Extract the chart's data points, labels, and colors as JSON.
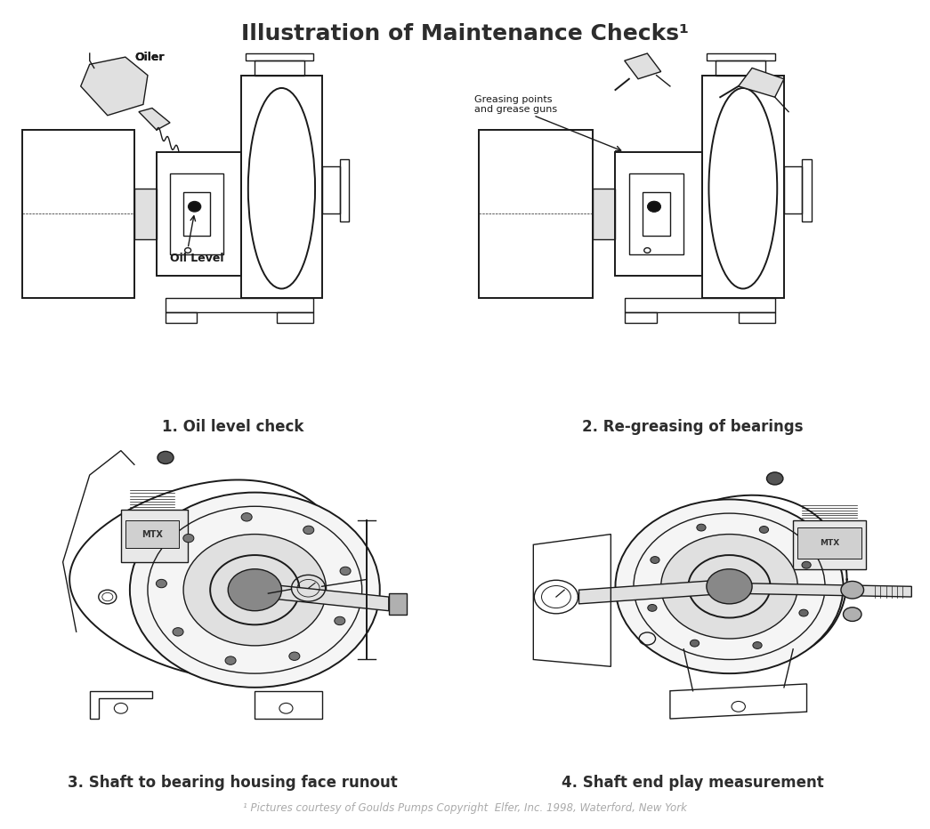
{
  "title": "Illustration of Maintenance Checks¹",
  "title_fontsize": 18,
  "title_fontweight": "bold",
  "title_color": "#2d2d2d",
  "background_color": "#ffffff",
  "footnote": "¹ Pictures courtesy of Goulds Pumps Copyright  Elfer, Inc. 1998, Waterford, New York",
  "footnote_fontsize": 8.5,
  "footnote_color": "#aaaaaa",
  "captions": [
    "1. Oil level check",
    "2. Re-greasing of bearings",
    "3. Shaft to bearing housing face runout",
    "4. Shaft end play measurement"
  ],
  "caption_fontsize": 12,
  "caption_fontweight": "bold",
  "caption_color": "#2d2d2d",
  "annotation_fontsize": 8,
  "layout": {
    "figwidth": 10.45,
    "figheight": 9.32
  }
}
